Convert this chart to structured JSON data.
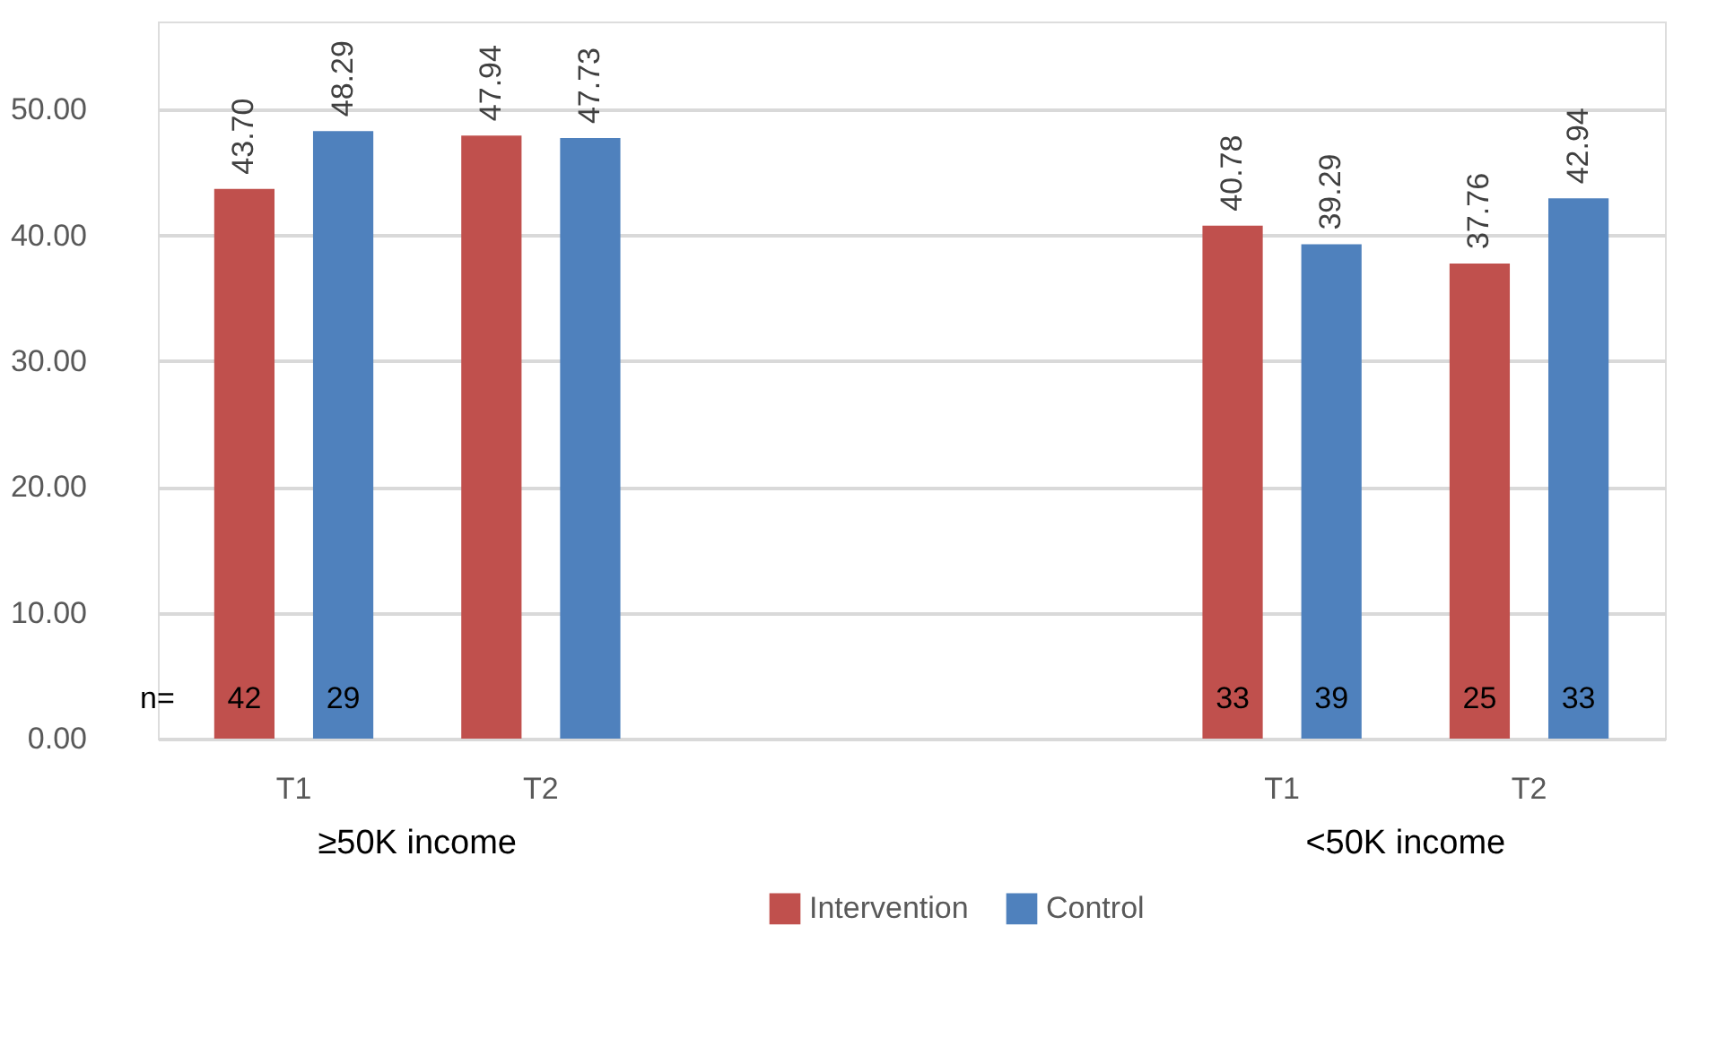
{
  "chart_data": {
    "type": "bar",
    "categories": [
      "T1",
      "T2",
      null,
      null,
      "T1",
      "T2"
    ],
    "series": [
      {
        "name": "Intervention",
        "color": "#c0504d",
        "values": [
          43.7,
          47.94,
          null,
          null,
          40.78,
          37.76
        ],
        "value_labels": [
          "43.70",
          "47.94",
          null,
          null,
          "40.78",
          "37.76"
        ]
      },
      {
        "name": "Control",
        "color": "#4f81bd",
        "values": [
          48.29,
          47.73,
          null,
          null,
          39.29,
          42.94
        ],
        "value_labels": [
          "48.29",
          "47.73",
          null,
          null,
          "39.29",
          "42.94"
        ]
      }
    ],
    "ylim": [
      0,
      57
    ],
    "yticks": [
      {
        "value": 0,
        "label": "0.00"
      },
      {
        "value": 10,
        "label": "10.00"
      },
      {
        "value": 20,
        "label": "20.00"
      },
      {
        "value": 30,
        "label": "30.00"
      },
      {
        "value": 40,
        "label": "40.00"
      },
      {
        "value": 50,
        "label": "50.00"
      }
    ],
    "grid": "y",
    "legend": "bottom",
    "annotations": [
      "n=",
      "42",
      "29",
      "33",
      "39",
      "25",
      "33",
      "≥50K income",
      "<50K income"
    ]
  }
}
